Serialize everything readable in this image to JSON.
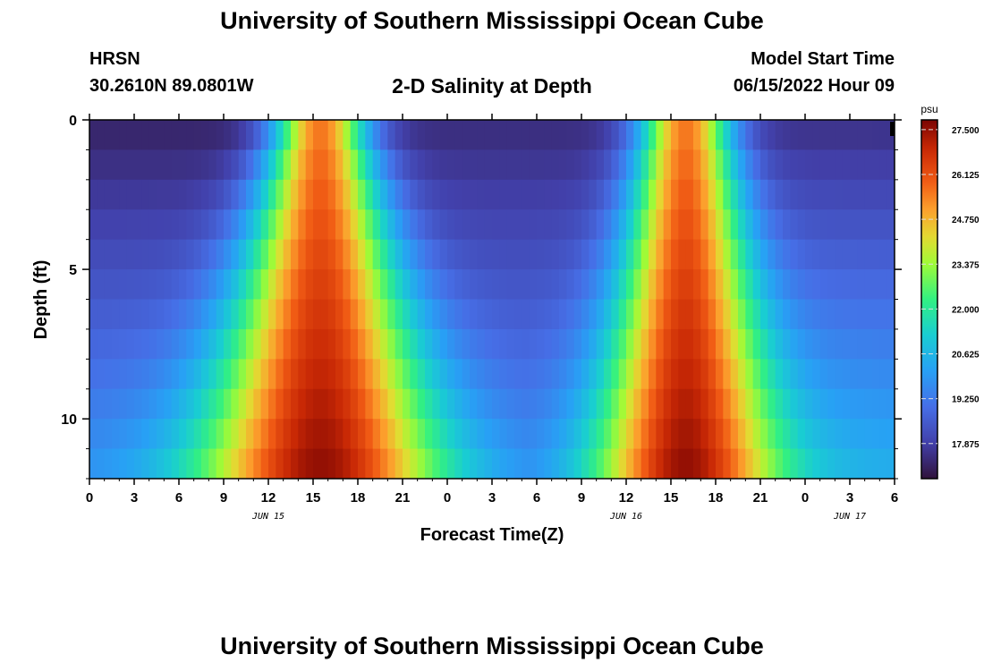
{
  "header": {
    "title": "University of Southern Mississippi Ocean Cube",
    "station": "HRSN",
    "coordinates": "30.2610N  89.0801W",
    "subtitle": "2-D Salinity at Depth",
    "model_start_label": "Model Start Time",
    "model_start_value": "06/15/2022 Hour 09"
  },
  "footer": {
    "title": "University of Southern Mississippi Ocean Cube"
  },
  "chart_data": {
    "type": "heatmap",
    "title": "2-D Salinity at Depth",
    "xlabel": "Forecast Time(Z)",
    "ylabel": "Depth (ft)",
    "x_range_hours": [
      0,
      54
    ],
    "y_range_ft": [
      0,
      12
    ],
    "x_ticks": [
      "0",
      "3",
      "6",
      "9",
      "12",
      "15",
      "18",
      "21",
      "0",
      "3",
      "6",
      "9",
      "12",
      "15",
      "18",
      "21",
      "0",
      "3",
      "6"
    ],
    "y_ticks": [
      "0",
      "5",
      "10"
    ],
    "date_labels": [
      {
        "text": "JUN 15",
        "hour": 12
      },
      {
        "text": "JUN 16",
        "hour": 36
      },
      {
        "text": "JUN 17",
        "hour": 51
      }
    ],
    "colorbar": {
      "unit": "psu",
      "range": [
        16.8,
        27.8
      ],
      "ticks": [
        "27.500",
        "26.125",
        "24.750",
        "23.375",
        "22.000",
        "20.625",
        "19.250",
        "17.875"
      ],
      "tick_values": [
        27.5,
        26.125,
        24.75,
        23.375,
        22.0,
        20.625,
        19.25,
        17.875
      ]
    },
    "time_step_hours": 0.5,
    "depth_levels_ft": [
      0,
      1,
      2,
      3,
      4,
      5,
      6,
      7,
      8,
      9,
      10,
      11
    ],
    "salinity_model": {
      "description": "depth-time salinity field with two tidal high-salinity pulses",
      "pulses": [
        {
          "center_hour": 15.5,
          "half_width_surface_hours": 3.0,
          "half_width_bottom_hours": 8.0
        },
        {
          "center_hour": 40.0,
          "half_width_surface_hours": 3.0,
          "half_width_bottom_hours": 6.0
        }
      ],
      "minima": [
        {
          "center_hour": 4.5,
          "surface_value": 17.2,
          "bottom_value": 19.8
        },
        {
          "center_hour": 29.0,
          "surface_value": 17.4,
          "bottom_value": 19.6
        },
        {
          "center_hour": 53.5,
          "surface_value": 17.5,
          "bottom_value": 20.5
        }
      ],
      "peak_surface_value": 25.5,
      "peak_bottom_value": 27.6
    }
  }
}
